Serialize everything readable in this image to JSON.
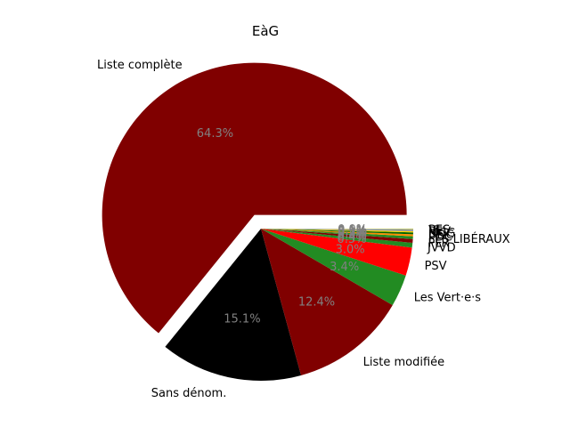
{
  "chart_data": {
    "type": "pie",
    "title": "EàG",
    "slices": [
      {
        "label": "Liste complète",
        "value": 64.3,
        "pct_label": "64.3%",
        "color": "#800000",
        "exploded": true
      },
      {
        "label": "Sans dénom.",
        "value": 15.1,
        "pct_label": "15.1%",
        "color": "#000000"
      },
      {
        "label": "Liste modifiée",
        "value": 12.4,
        "pct_label": "12.4%",
        "color": "#800000"
      },
      {
        "label": "Les Vert·e·s",
        "value": 3.4,
        "pct_label": "3.4%",
        "color": "#228b22"
      },
      {
        "label": "PSV",
        "value": 3.0,
        "pct_label": "3.0%",
        "color": "#ff0000"
      },
      {
        "label": "JVVD",
        "value": 0.5,
        "pct_label": "0.5%",
        "color": "#228b22"
      },
      {
        "label": "PLR",
        "value": 0.4,
        "pct_label": "0.4%",
        "color": "#800000"
      },
      {
        "label": "LES LIBÉRAUX",
        "value": 0.3,
        "pct_label": "0.3%",
        "color": "#228b22"
      },
      {
        "label": "PDC",
        "value": 0.2,
        "pct_label": "0.2%",
        "color": "#ff8c00"
      },
      {
        "label": "UDC",
        "value": 0.2,
        "pct_label": "0.2%",
        "color": "#006400"
      },
      {
        "label": "MCG",
        "value": 0.15,
        "pct_label": "0.1%",
        "color": "#ffd700"
      },
      {
        "label": "PEV",
        "value": 0.1,
        "pct_label": "0.1%",
        "color": "#4169e1"
      },
      {
        "label": "VL",
        "value": 0.1,
        "pct_label": "0.1%",
        "color": "#d2b48c"
      },
      {
        "label": "PES",
        "value": 0.05,
        "pct_label": "0.0%",
        "color": "#9acd32"
      }
    ]
  }
}
